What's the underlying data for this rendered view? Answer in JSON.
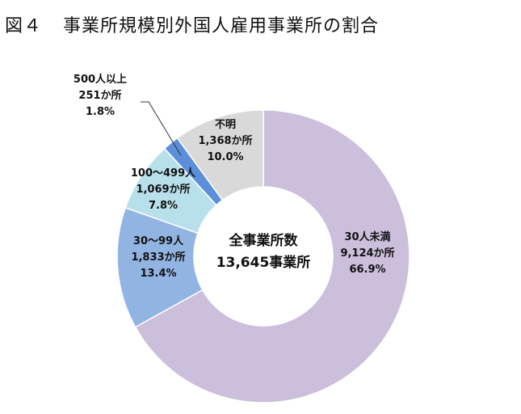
{
  "title": {
    "figure_number": "図４",
    "text": "事業所規模別外国人雇用事業所の割合"
  },
  "chart_data": {
    "type": "pie",
    "variant": "donut",
    "title": "事業所規模別外国人雇用事業所の割合",
    "center_label": {
      "line1": "全事業所数",
      "line2": "13,645事業所"
    },
    "slices": [
      {
        "name": "30人未満",
        "count": 9124,
        "count_label": "9,124か所",
        "percent": 66.9,
        "percent_label": "66.9%",
        "color": "#cbbfdb"
      },
      {
        "name": "30～99人",
        "count": 1833,
        "count_label": "1,833か所",
        "percent": 13.4,
        "percent_label": "13.4%",
        "color": "#92b4e3"
      },
      {
        "name": "100～499人",
        "count": 1069,
        "count_label": "1,069か所",
        "percent": 7.8,
        "percent_label": "7.8%",
        "color": "#b8e0ea"
      },
      {
        "name": "500人以上",
        "count": 251,
        "count_label": "251か所",
        "percent": 1.8,
        "percent_label": "1.8%",
        "color": "#5b8fd9"
      },
      {
        "name": "不明",
        "count": 1368,
        "count_label": "1,368か所",
        "percent": 10.0,
        "percent_label": "10.0%",
        "color": "#d9d9d9"
      }
    ],
    "legend": "none"
  }
}
